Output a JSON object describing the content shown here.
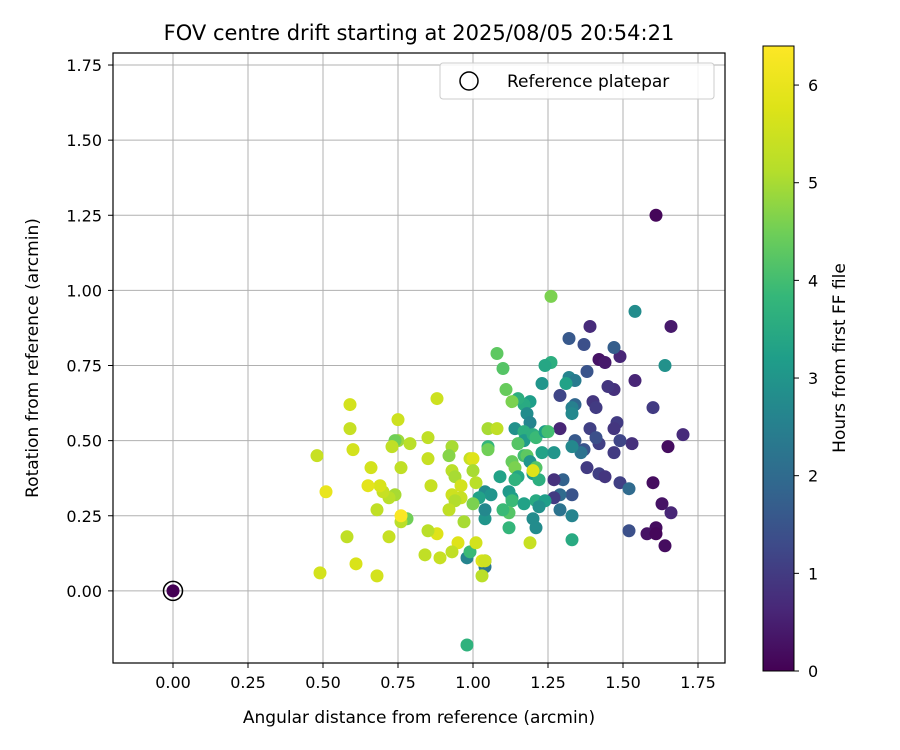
{
  "chart_data": {
    "type": "scatter",
    "title": "FOV centre drift starting at 2025/08/05 20:54:21",
    "xlabel": "Angular distance from reference (arcmin)",
    "ylabel": "Rotation from reference (arcmin)",
    "xlim": [
      -0.2,
      1.84
    ],
    "ylim": [
      -0.24,
      1.79
    ],
    "xticks": [
      "0.00",
      "0.25",
      "0.50",
      "0.75",
      "1.00",
      "1.25",
      "1.50",
      "1.75"
    ],
    "yticks": [
      "0.00",
      "0.25",
      "0.50",
      "0.75",
      "1.00",
      "1.25",
      "1.50",
      "1.75"
    ],
    "grid": true,
    "legend": {
      "placement": "top-right",
      "entries": [
        "Reference platepar"
      ]
    },
    "colorbar": {
      "label": "Hours from first FF file",
      "ticks": [
        "0",
        "1",
        "2",
        "3",
        "4",
        "5",
        "6"
      ],
      "range": [
        0,
        6.4
      ],
      "colormap": "viridis"
    },
    "reference_point": {
      "x": 0.0,
      "y": 0.0,
      "c": 0.0
    },
    "points": [
      [
        1.61,
        1.25,
        0.1
      ],
      [
        1.66,
        0.88,
        0.4
      ],
      [
        1.39,
        0.88,
        0.7
      ],
      [
        1.42,
        0.77,
        0.3
      ],
      [
        1.44,
        0.76,
        0.4
      ],
      [
        1.49,
        0.78,
        0.6
      ],
      [
        1.54,
        0.7,
        0.6
      ],
      [
        1.47,
        0.67,
        0.8
      ],
      [
        1.45,
        0.68,
        0.9
      ],
      [
        1.6,
        0.61,
        1.0
      ],
      [
        1.7,
        0.52,
        0.7
      ],
      [
        1.65,
        0.48,
        0.2
      ],
      [
        1.53,
        0.49,
        0.8
      ],
      [
        1.48,
        0.56,
        1.0
      ],
      [
        1.47,
        0.54,
        0.9
      ],
      [
        1.49,
        0.5,
        1.2
      ],
      [
        1.47,
        0.46,
        1.0
      ],
      [
        1.42,
        0.49,
        1.1
      ],
      [
        1.4,
        0.63,
        0.9
      ],
      [
        1.41,
        0.61,
        1.0
      ],
      [
        1.39,
        0.54,
        1.1
      ],
      [
        1.38,
        0.41,
        1.0
      ],
      [
        1.42,
        0.39,
        1.1
      ],
      [
        1.44,
        0.38,
        0.9
      ],
      [
        1.49,
        0.36,
        1.1
      ],
      [
        1.52,
        0.34,
        2.0
      ],
      [
        1.6,
        0.36,
        0.2
      ],
      [
        1.63,
        0.29,
        0.3
      ],
      [
        1.66,
        0.26,
        0.6
      ],
      [
        1.61,
        0.21,
        0.2
      ],
      [
        1.58,
        0.19,
        0.3
      ],
      [
        1.61,
        0.19,
        0.1
      ],
      [
        1.64,
        0.15,
        0.2
      ],
      [
        1.52,
        0.2,
        1.4
      ],
      [
        1.29,
        0.54,
        0.6
      ],
      [
        1.29,
        0.65,
        1.2
      ],
      [
        1.32,
        0.84,
        1.6
      ],
      [
        1.37,
        0.82,
        1.4
      ],
      [
        1.47,
        0.81,
        1.7
      ],
      [
        1.54,
        0.93,
        2.8
      ],
      [
        1.64,
        0.75,
        2.9
      ],
      [
        1.32,
        0.71,
        2.6
      ],
      [
        1.34,
        0.7,
        2.4
      ],
      [
        1.38,
        0.73,
        1.5
      ],
      [
        1.34,
        0.62,
        1.9
      ],
      [
        1.33,
        0.61,
        2.5
      ],
      [
        1.33,
        0.59,
        2.7
      ],
      [
        1.41,
        0.51,
        1.4
      ],
      [
        1.37,
        0.47,
        1.5
      ],
      [
        1.36,
        0.46,
        2.2
      ],
      [
        1.34,
        0.5,
        1.6
      ],
      [
        1.33,
        0.48,
        2.7
      ],
      [
        1.3,
        0.37,
        1.8
      ],
      [
        1.33,
        0.32,
        1.5
      ],
      [
        1.29,
        0.32,
        2.0
      ],
      [
        1.27,
        0.37,
        0.8
      ],
      [
        1.27,
        0.31,
        1.0
      ],
      [
        1.29,
        0.27,
        2.2
      ],
      [
        1.33,
        0.25,
        2.6
      ],
      [
        1.33,
        0.17,
        3.5
      ],
      [
        1.26,
        0.98,
        4.6
      ],
      [
        1.26,
        0.76,
        3.6
      ],
      [
        1.24,
        0.75,
        3.4
      ],
      [
        1.23,
        0.69,
        3.0
      ],
      [
        1.31,
        0.69,
        3.3
      ],
      [
        1.19,
        0.63,
        3.2
      ],
      [
        1.17,
        0.62,
        3.5
      ],
      [
        1.15,
        0.64,
        3.6
      ],
      [
        1.18,
        0.59,
        2.8
      ],
      [
        1.19,
        0.56,
        2.6
      ],
      [
        1.14,
        0.54,
        2.9
      ],
      [
        1.17,
        0.53,
        3.6
      ],
      [
        1.17,
        0.5,
        3.1
      ],
      [
        1.2,
        0.52,
        3.6
      ],
      [
        1.21,
        0.51,
        3.9
      ],
      [
        1.24,
        0.53,
        3.2
      ],
      [
        1.25,
        0.53,
        4.0
      ],
      [
        1.23,
        0.46,
        3.3
      ],
      [
        1.27,
        0.46,
        3.0
      ],
      [
        1.15,
        0.49,
        4.2
      ],
      [
        1.17,
        0.45,
        4.0
      ],
      [
        1.13,
        0.43,
        4.4
      ],
      [
        1.14,
        0.41,
        4.6
      ],
      [
        1.18,
        0.45,
        4.3
      ],
      [
        1.19,
        0.43,
        3.0
      ],
      [
        1.2,
        0.39,
        3.1
      ],
      [
        1.21,
        0.41,
        4.2
      ],
      [
        1.22,
        0.37,
        3.6
      ],
      [
        1.15,
        0.38,
        3.4
      ],
      [
        1.14,
        0.37,
        3.7
      ],
      [
        1.09,
        0.38,
        3.3
      ],
      [
        1.12,
        0.33,
        3.1
      ],
      [
        1.13,
        0.31,
        3.2
      ],
      [
        1.13,
        0.3,
        3.9
      ],
      [
        1.17,
        0.29,
        3.3
      ],
      [
        1.21,
        0.3,
        3.5
      ],
      [
        1.24,
        0.3,
        3.2
      ],
      [
        1.22,
        0.28,
        2.9
      ],
      [
        1.2,
        0.24,
        2.8
      ],
      [
        1.21,
        0.21,
        2.8
      ],
      [
        1.12,
        0.26,
        4.2
      ],
      [
        1.1,
        0.27,
        3.9
      ],
      [
        1.12,
        0.21,
        3.8
      ],
      [
        1.04,
        0.24,
        3.0
      ],
      [
        1.04,
        0.27,
        2.7
      ],
      [
        1.04,
        0.33,
        2.8
      ],
      [
        1.06,
        0.32,
        3.0
      ],
      [
        1.02,
        0.31,
        3.3
      ],
      [
        1.08,
        0.79,
        4.3
      ],
      [
        1.1,
        0.74,
        4.2
      ],
      [
        1.05,
        0.54,
        5.0
      ],
      [
        1.08,
        0.54,
        5.3
      ],
      [
        1.11,
        0.67,
        4.4
      ],
      [
        1.13,
        0.63,
        4.6
      ],
      [
        1.05,
        0.48,
        3.8
      ],
      [
        1.05,
        0.47,
        4.5
      ],
      [
        0.98,
        0.11,
        2.6
      ],
      [
        1.04,
        0.1,
        2.4
      ],
      [
        1.04,
        0.08,
        2.3
      ],
      [
        0.99,
        0.13,
        3.9
      ],
      [
        0.98,
        -0.18,
        3.7
      ],
      [
        0.88,
        0.64,
        5.5
      ],
      [
        0.75,
        0.57,
        5.5
      ],
      [
        0.75,
        0.5,
        4.9
      ],
      [
        0.74,
        0.5,
        4.5
      ],
      [
        0.73,
        0.48,
        5.3
      ],
      [
        0.76,
        0.41,
        5.3
      ],
      [
        0.79,
        0.49,
        5.2
      ],
      [
        0.85,
        0.51,
        5.3
      ],
      [
        0.85,
        0.44,
        5.4
      ],
      [
        0.93,
        0.48,
        5.0
      ],
      [
        0.92,
        0.45,
        4.7
      ],
      [
        0.93,
        0.4,
        5.2
      ],
      [
        0.94,
        0.38,
        5.0
      ],
      [
        0.96,
        0.35,
        5.6
      ],
      [
        0.96,
        0.31,
        5.4
      ],
      [
        0.99,
        0.44,
        5.4
      ],
      [
        1.0,
        0.44,
        5.8
      ],
      [
        1.0,
        0.4,
        5.0
      ],
      [
        1.01,
        0.36,
        5.2
      ],
      [
        0.93,
        0.32,
        5.5
      ],
      [
        0.94,
        0.3,
        5.1
      ],
      [
        0.92,
        0.27,
        5.3
      ],
      [
        0.97,
        0.23,
        5.0
      ],
      [
        1.0,
        0.29,
        4.6
      ],
      [
        1.01,
        0.16,
        5.6
      ],
      [
        0.95,
        0.16,
        5.8
      ],
      [
        0.93,
        0.13,
        5.3
      ],
      [
        0.89,
        0.11,
        5.4
      ],
      [
        0.88,
        0.19,
        5.8
      ],
      [
        0.85,
        0.2,
        5.2
      ],
      [
        0.84,
        0.12,
        5.3
      ],
      [
        0.86,
        0.35,
        5.4
      ],
      [
        0.78,
        0.24,
        4.5
      ],
      [
        0.76,
        0.23,
        5.2
      ],
      [
        0.74,
        0.32,
        5.0
      ],
      [
        0.72,
        0.31,
        5.2
      ],
      [
        0.7,
        0.33,
        5.4
      ],
      [
        0.69,
        0.35,
        5.7
      ],
      [
        0.68,
        0.27,
        5.3
      ],
      [
        0.66,
        0.41,
        5.6
      ],
      [
        0.65,
        0.35,
        5.9
      ],
      [
        0.59,
        0.62,
        5.6
      ],
      [
        0.59,
        0.54,
        5.4
      ],
      [
        0.6,
        0.47,
        5.6
      ],
      [
        0.58,
        0.18,
        5.3
      ],
      [
        0.61,
        0.09,
        5.7
      ],
      [
        0.68,
        0.05,
        5.6
      ],
      [
        0.72,
        0.18,
        5.4
      ],
      [
        0.48,
        0.45,
        5.4
      ],
      [
        0.51,
        0.33,
        6.0
      ],
      [
        0.49,
        0.06,
        5.6
      ],
      [
        0.76,
        0.25,
        6.35
      ],
      [
        1.03,
        0.1,
        5.8
      ],
      [
        1.03,
        0.05,
        5.2
      ],
      [
        1.04,
        0.1,
        5.5
      ],
      [
        1.19,
        0.16,
        5.4
      ],
      [
        1.2,
        0.4,
        5.8
      ]
    ]
  }
}
